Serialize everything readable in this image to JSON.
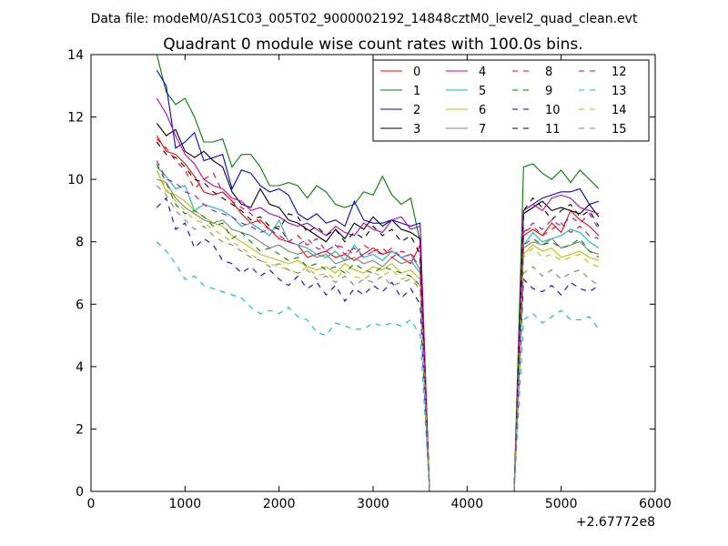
{
  "suptitle": "Data file: modeM0/AS1C03_005T02_9000002192_14848cztM0_level2_quad_clean.evt",
  "chart_data": {
    "type": "line",
    "title": "Quadrant 0 module wise count rates with 100.0s bins.",
    "xlabel": "",
    "ylabel": "",
    "x_offset_label": "+2.67772e8",
    "xlim": [
      0,
      6000
    ],
    "ylim": [
      0,
      14
    ],
    "x_ticks": [
      0,
      1000,
      2000,
      3000,
      4000,
      5000,
      6000
    ],
    "y_ticks": [
      0,
      2,
      4,
      6,
      8,
      10,
      12,
      14
    ],
    "grid": false,
    "legend": {
      "position": "top-right",
      "ncol": 4
    },
    "x": [
      700,
      800,
      900,
      1000,
      1100,
      1200,
      1300,
      1400,
      1500,
      1600,
      1700,
      1800,
      1900,
      2000,
      2100,
      2200,
      2300,
      2400,
      2500,
      2600,
      2700,
      2800,
      2900,
      3000,
      3100,
      3200,
      3300,
      3400,
      3500,
      3600,
      3700,
      3800,
      3900,
      4000,
      4100,
      4200,
      4300,
      4400,
      4500,
      4600,
      4700,
      4800,
      4900,
      5000,
      5100,
      5200,
      5300,
      5400
    ],
    "series": [
      {
        "name": "0",
        "color": "#ff0000",
        "dash": "solid",
        "values": [
          11.4,
          10.9,
          10.8,
          10.5,
          10.1,
          9.6,
          9.5,
          9.6,
          9.3,
          8.9,
          8.6,
          8.7,
          8.4,
          8.1,
          8.0,
          7.9,
          7.5,
          7.6,
          7.7,
          7.5,
          7.6,
          7.4,
          7.6,
          7.8,
          7.6,
          7.7,
          7.5,
          7.3,
          7.9,
          0,
          0,
          0,
          0,
          0,
          0,
          0,
          0,
          0,
          0,
          8.2,
          8.4,
          8.2,
          8.6,
          8.3,
          9.0,
          8.7,
          8.5,
          8.2
        ]
      },
      {
        "name": "1",
        "color": "#008000",
        "dash": "solid",
        "values": [
          14.0,
          12.8,
          12.4,
          12.6,
          12.0,
          11.2,
          11.2,
          11.3,
          10.4,
          10.8,
          10.8,
          10.4,
          9.8,
          9.8,
          9.9,
          9.8,
          9.4,
          9.8,
          9.6,
          9.2,
          9.1,
          9.2,
          9.6,
          9.5,
          10.1,
          9.5,
          9.2,
          9.4,
          8.0,
          0,
          0,
          0,
          0,
          0,
          0,
          0,
          0,
          0,
          0,
          10.4,
          10.5,
          10.2,
          10.0,
          10.3,
          9.9,
          10.3,
          10.0,
          9.7
        ]
      },
      {
        "name": "2",
        "color": "#0000ff",
        "dash": "solid",
        "values": [
          13.5,
          13.0,
          11.0,
          11.2,
          11.5,
          10.6,
          10.7,
          10.8,
          9.7,
          10.3,
          10.2,
          9.8,
          9.6,
          9.7,
          9.5,
          8.9,
          8.7,
          8.9,
          8.6,
          8.7,
          8.5,
          9.3,
          8.7,
          8.6,
          8.6,
          8.7,
          8.6,
          8.5,
          8.6,
          0,
          0,
          0,
          0,
          0,
          0,
          0,
          0,
          0,
          0,
          9.0,
          9.2,
          9.4,
          9.5,
          9.6,
          9.6,
          9.7,
          9.2,
          9.3
        ]
      },
      {
        "name": "3",
        "color": "#000000",
        "dash": "solid",
        "values": [
          11.8,
          11.4,
          11.6,
          10.9,
          10.7,
          10.9,
          10.6,
          10.4,
          9.6,
          9.2,
          9.1,
          9.7,
          9.2,
          9.1,
          8.7,
          8.6,
          8.4,
          8.2,
          8.0,
          8.4,
          8.1,
          8.6,
          8.4,
          8.8,
          8.5,
          8.7,
          8.4,
          8.3,
          8.1,
          0,
          0,
          0,
          0,
          0,
          0,
          0,
          0,
          0,
          0,
          8.9,
          9.1,
          9.3,
          9.0,
          9.1,
          9.0,
          8.9,
          9.2,
          8.8
        ]
      },
      {
        "name": "4",
        "color": "#bf00bf",
        "dash": "solid",
        "values": [
          12.6,
          12.1,
          11.4,
          10.8,
          10.5,
          10.0,
          9.8,
          9.7,
          9.4,
          9.3,
          9.0,
          9.1,
          8.9,
          8.8,
          8.6,
          8.5,
          8.6,
          8.4,
          8.2,
          8.5,
          8.3,
          8.2,
          8.6,
          8.4,
          8.3,
          8.7,
          8.8,
          8.4,
          8.5,
          0,
          0,
          0,
          0,
          0,
          0,
          0,
          0,
          0,
          0,
          9.0,
          9.2,
          9.0,
          9.4,
          9.5,
          9.4,
          9.1,
          9.0,
          8.9
        ]
      },
      {
        "name": "5",
        "color": "#00bfbf",
        "dash": "solid",
        "values": [
          10.4,
          10.1,
          9.7,
          9.8,
          9.0,
          9.2,
          9.1,
          9.0,
          8.8,
          8.5,
          8.6,
          8.4,
          8.2,
          8.7,
          8.0,
          7.9,
          7.8,
          7.6,
          7.5,
          7.7,
          7.4,
          7.9,
          7.5,
          7.6,
          7.4,
          7.7,
          7.5,
          7.6,
          7.1,
          0,
          0,
          0,
          0,
          0,
          0,
          0,
          0,
          0,
          0,
          7.9,
          8.3,
          8.0,
          8.1,
          8.2,
          8.4,
          8.3,
          8.0,
          7.8
        ]
      },
      {
        "name": "6",
        "color": "#bfbf00",
        "dash": "solid",
        "values": [
          10.3,
          9.6,
          9.5,
          9.3,
          9.0,
          8.8,
          8.6,
          8.5,
          8.2,
          8.0,
          7.8,
          7.6,
          7.5,
          7.4,
          7.3,
          7.4,
          7.2,
          7.1,
          7.2,
          7.0,
          7.3,
          7.1,
          7.0,
          7.2,
          7.1,
          7.3,
          7.0,
          7.1,
          6.8,
          0,
          0,
          0,
          0,
          0,
          0,
          0,
          0,
          0,
          0,
          7.6,
          7.9,
          7.7,
          7.8,
          7.5,
          7.6,
          7.7,
          7.5,
          7.4
        ]
      },
      {
        "name": "7",
        "color": "#808080",
        "dash": "solid",
        "values": [
          10.0,
          9.9,
          9.4,
          9.1,
          8.9,
          8.7,
          8.6,
          8.7,
          8.4,
          8.3,
          8.2,
          8.0,
          7.8,
          7.9,
          7.7,
          7.6,
          7.7,
          7.5,
          7.6,
          7.3,
          7.4,
          7.5,
          7.3,
          7.4,
          7.2,
          7.5,
          7.3,
          7.4,
          7.0,
          0,
          0,
          0,
          0,
          0,
          0,
          0,
          0,
          0,
          0,
          7.8,
          8.0,
          7.9,
          8.1,
          7.8,
          7.9,
          8.0,
          7.7,
          7.6
        ]
      },
      {
        "name": "8",
        "color": "#ff0000",
        "dash": "dashed",
        "values": [
          11.3,
          11.0,
          10.6,
          10.3,
          9.7,
          10.0,
          10.2,
          9.6,
          9.3,
          9.1,
          8.9,
          8.6,
          8.4,
          8.5,
          8.0,
          8.2,
          7.9,
          8.1,
          7.7,
          7.9,
          7.8,
          7.6,
          7.9,
          7.7,
          7.8,
          7.5,
          7.7,
          7.6,
          7.4,
          0,
          0,
          0,
          0,
          0,
          0,
          0,
          0,
          0,
          0,
          8.3,
          8.5,
          8.2,
          8.4,
          8.6,
          8.3,
          8.5,
          8.2,
          8.1
        ]
      },
      {
        "name": "9",
        "color": "#008000",
        "dash": "dashed",
        "values": [
          10.5,
          9.9,
          9.2,
          8.9,
          9.0,
          8.8,
          8.5,
          8.6,
          8.1,
          8.3,
          8.0,
          7.7,
          7.8,
          7.6,
          7.4,
          7.5,
          7.2,
          7.3,
          7.1,
          7.2,
          7.0,
          7.3,
          7.1,
          7.0,
          7.2,
          7.1,
          7.0,
          6.9,
          6.6,
          0,
          0,
          0,
          0,
          0,
          0,
          0,
          0,
          0,
          0,
          7.9,
          8.1,
          7.9,
          8.0,
          7.8,
          7.9,
          8.1,
          7.7,
          7.5
        ]
      },
      {
        "name": "10",
        "color": "#0000ff",
        "dash": "dashed",
        "values": [
          9.1,
          9.4,
          8.4,
          8.6,
          7.8,
          8.1,
          7.9,
          7.4,
          7.3,
          7.0,
          7.2,
          6.9,
          7.1,
          6.8,
          6.6,
          6.9,
          6.5,
          6.7,
          6.3,
          6.6,
          6.1,
          6.5,
          6.3,
          6.6,
          6.4,
          6.7,
          6.2,
          6.5,
          6.0,
          0,
          0,
          0,
          0,
          0,
          0,
          0,
          0,
          0,
          0,
          6.8,
          6.5,
          6.4,
          6.6,
          6.3,
          6.7,
          6.5,
          6.4,
          6.6
        ]
      },
      {
        "name": "11",
        "color": "#000000",
        "dash": "dashed",
        "values": [
          11.2,
          10.8,
          10.7,
          10.4,
          10.0,
          9.9,
          9.6,
          9.4,
          9.2,
          9.0,
          8.7,
          8.8,
          8.5,
          8.4,
          8.9,
          8.8,
          8.3,
          8.5,
          8.2,
          8.4,
          8.0,
          8.3,
          8.1,
          8.5,
          8.2,
          8.4,
          8.0,
          8.2,
          7.6,
          0,
          0,
          0,
          0,
          0,
          0,
          0,
          0,
          0,
          0,
          9.0,
          9.4,
          9.1,
          8.7,
          9.0,
          9.2,
          8.8,
          9.0,
          8.5
        ]
      },
      {
        "name": "12",
        "color": "#bf00bf",
        "dash": "dashed",
        "values": [
          10.6,
          10.0,
          9.9,
          9.6,
          9.5,
          9.2,
          9.0,
          8.9,
          8.8,
          8.6,
          8.5,
          8.3,
          8.4,
          8.2,
          8.0,
          7.9,
          8.1,
          7.8,
          7.7,
          7.9,
          7.6,
          7.8,
          7.5,
          7.7,
          7.6,
          7.8,
          7.5,
          7.6,
          7.2,
          0,
          0,
          0,
          0,
          0,
          0,
          0,
          0,
          0,
          0,
          8.3,
          8.6,
          8.4,
          8.7,
          8.5,
          8.8,
          8.6,
          8.9,
          8.4
        ]
      },
      {
        "name": "13",
        "color": "#00bfbf",
        "dash": "dashed",
        "values": [
          8.0,
          7.7,
          7.3,
          6.8,
          6.9,
          6.6,
          6.5,
          6.4,
          6.3,
          6.2,
          5.9,
          5.7,
          5.8,
          5.7,
          5.9,
          5.6,
          5.5,
          5.1,
          5.0,
          5.4,
          5.3,
          5.2,
          5.2,
          5.4,
          5.3,
          5.4,
          5.3,
          5.5,
          5.0,
          0,
          0,
          0,
          0,
          0,
          0,
          0,
          0,
          0,
          0,
          5.5,
          5.7,
          5.4,
          5.6,
          5.8,
          5.5,
          5.5,
          5.6,
          5.2
        ]
      },
      {
        "name": "14",
        "color": "#bfbf00",
        "dash": "dashed",
        "values": [
          10.3,
          9.7,
          9.3,
          9.0,
          8.7,
          8.6,
          8.4,
          8.2,
          8.0,
          7.8,
          7.6,
          7.4,
          7.3,
          7.2,
          7.1,
          7.0,
          7.2,
          6.9,
          7.0,
          6.8,
          7.1,
          6.9,
          6.8,
          7.0,
          6.9,
          7.1,
          6.8,
          6.9,
          6.6,
          0,
          0,
          0,
          0,
          0,
          0,
          0,
          0,
          0,
          0,
          7.5,
          7.8,
          7.5,
          7.6,
          7.4,
          7.5,
          7.6,
          7.3,
          7.2
        ]
      },
      {
        "name": "15",
        "color": "#808080",
        "dash": "dashed",
        "values": [
          9.8,
          9.5,
          9.0,
          8.7,
          8.4,
          8.5,
          8.2,
          8.0,
          7.9,
          7.7,
          7.5,
          7.4,
          7.2,
          7.3,
          7.1,
          7.0,
          7.1,
          6.8,
          6.9,
          6.7,
          6.9,
          6.6,
          6.8,
          6.7,
          6.9,
          6.6,
          6.7,
          6.8,
          6.5,
          0,
          0,
          0,
          0,
          0,
          0,
          0,
          0,
          0,
          0,
          7.0,
          7.2,
          6.9,
          7.1,
          6.8,
          7.0,
          7.1,
          6.8,
          6.6
        ]
      }
    ]
  }
}
